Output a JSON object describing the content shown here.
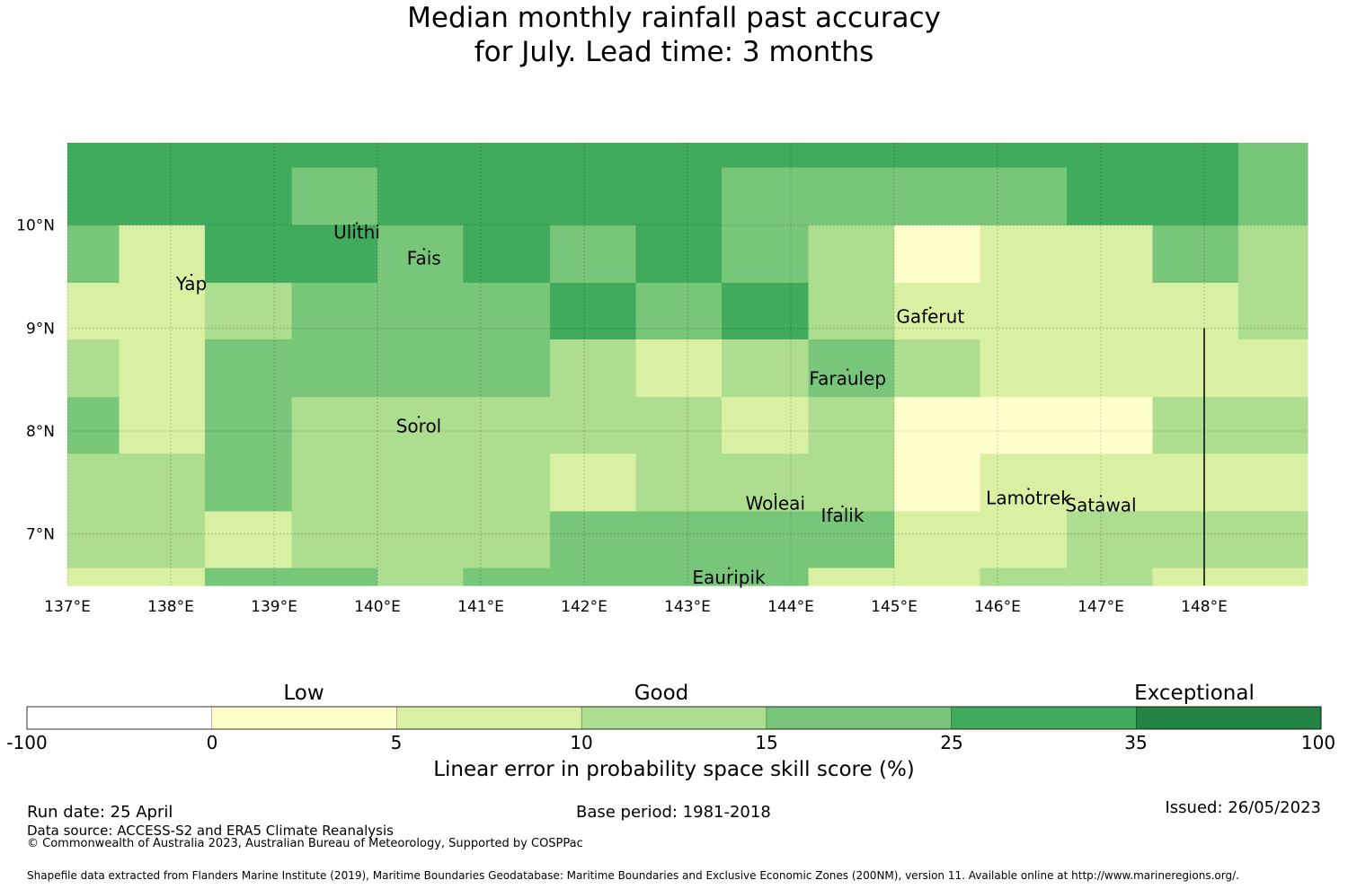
{
  "title": {
    "line1": "Median monthly rainfall past accuracy",
    "line2": "for July. Lead time: 3 months"
  },
  "map": {
    "lon_range": [
      137,
      149
    ],
    "lat_range": [
      6.5,
      10.8
    ],
    "x_ticks": [
      "137°E",
      "138°E",
      "139°E",
      "140°E",
      "141°E",
      "142°E",
      "143°E",
      "144°E",
      "145°E",
      "146°E",
      "147°E",
      "148°E"
    ],
    "y_ticks": [
      "10°N",
      "9°N",
      "8°N",
      "7°N"
    ],
    "x_tick_values": [
      137,
      138,
      139,
      140,
      141,
      142,
      143,
      144,
      145,
      146,
      147,
      148
    ],
    "y_tick_values": [
      10,
      9,
      8,
      7
    ],
    "column_edges": [
      137.0,
      137.5,
      138.33,
      139.17,
      140.0,
      140.83,
      141.67,
      142.5,
      143.33,
      144.17,
      145.0,
      145.83,
      146.67,
      147.5,
      148.33,
      149.0
    ],
    "row_edges": [
      10.8,
      10.56,
      10.0,
      9.44,
      8.89,
      8.33,
      7.78,
      7.22,
      6.67,
      6.5
    ],
    "skill_categories": [
      [
        5,
        5,
        5,
        5,
        5,
        5,
        5,
        5,
        5,
        5,
        5,
        5,
        5,
        5,
        4
      ],
      [
        5,
        5,
        5,
        4,
        5,
        5,
        5,
        5,
        4,
        4,
        4,
        4,
        5,
        5,
        4
      ],
      [
        4,
        2,
        5,
        5,
        4,
        5,
        4,
        5,
        4,
        3,
        1,
        2,
        2,
        4,
        3
      ],
      [
        2,
        2,
        3,
        4,
        4,
        4,
        5,
        4,
        5,
        3,
        2,
        2,
        2,
        2,
        3
      ],
      [
        3,
        2,
        4,
        4,
        4,
        4,
        3,
        2,
        3,
        4,
        3,
        2,
        2,
        2,
        2
      ],
      [
        4,
        2,
        4,
        3,
        3,
        3,
        3,
        3,
        2,
        3,
        1,
        1,
        1,
        3,
        3
      ],
      [
        3,
        3,
        4,
        3,
        3,
        3,
        2,
        3,
        3,
        3,
        1,
        2,
        2,
        2,
        2
      ],
      [
        3,
        3,
        2,
        3,
        3,
        3,
        4,
        4,
        4,
        4,
        2,
        2,
        3,
        3,
        3
      ],
      [
        2,
        2,
        4,
        4,
        3,
        4,
        4,
        4,
        4,
        2,
        2,
        3,
        3,
        2,
        2
      ]
    ],
    "boundary_line_lon": 148.0,
    "boundary_line_lat_range": [
      6.5,
      9.0
    ],
    "islands": [
      {
        "name": "Ulithi",
        "lon": 139.8,
        "lat": 10.0
      },
      {
        "name": "Fais",
        "lon": 140.45,
        "lat": 9.75
      },
      {
        "name": "Yap",
        "lon": 138.2,
        "lat": 9.5
      },
      {
        "name": "Gaferut",
        "lon": 145.35,
        "lat": 9.18
      },
      {
        "name": "Faraulep",
        "lon": 144.55,
        "lat": 8.58
      },
      {
        "name": "Sorol",
        "lon": 140.4,
        "lat": 8.12
      },
      {
        "name": "Woleai",
        "lon": 143.85,
        "lat": 7.37
      },
      {
        "name": "Ifalik",
        "lon": 144.5,
        "lat": 7.25
      },
      {
        "name": "Lamotrek",
        "lon": 146.3,
        "lat": 7.42
      },
      {
        "name": "Satawal",
        "lon": 147.0,
        "lat": 7.35
      },
      {
        "name": "Eauripik",
        "lon": 143.4,
        "lat": 6.65
      }
    ]
  },
  "colorbar": {
    "colors": [
      "#ffffff",
      "#ffffcc",
      "#d9f0a3",
      "#addd8e",
      "#78c679",
      "#41ab5d",
      "#238443"
    ],
    "ticks": [
      "-100",
      "0",
      "5",
      "10",
      "15",
      "25",
      "35",
      "100"
    ],
    "categories": [
      "Low",
      "Good",
      "Exceptional"
    ],
    "label": "Linear error in probability space skill score (%)"
  },
  "footer": {
    "run_date": "Run date: 25 April",
    "base_period": "Base period: 1981-2018",
    "issued": "Issued: 26/05/2023",
    "data_source": "Data source: ACCESS-S2 and ERA5 Climate Reanalysis",
    "copyright": "© Commonwealth of Australia 2023, Australian Bureau of Meteorology, Supported by COSPPac",
    "shapefile": "Shapefile data extracted from Flanders Marine Institute (2019), Maritime Boundaries Geodatabase: Maritime Boundaries and Exclusive Economic Zones (200NM), version 11. Available online at http://www.marineregions.org/."
  }
}
